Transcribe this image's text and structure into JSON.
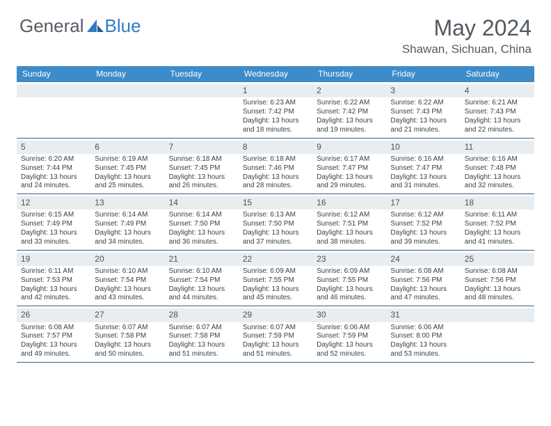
{
  "brand": {
    "part1": "General",
    "part2": "Blue"
  },
  "title": "May 2024",
  "location": "Shawan, Sichuan, China",
  "daynames": [
    "Sunday",
    "Monday",
    "Tuesday",
    "Wednesday",
    "Thursday",
    "Friday",
    "Saturday"
  ],
  "colors": {
    "header_bg": "#3c8ccb",
    "daynum_bg": "#e9edf0",
    "rule": "#2e5e88",
    "text": "#3a3f44",
    "title": "#52595f"
  },
  "weeks": [
    [
      null,
      null,
      null,
      {
        "n": "1",
        "sr": "6:23 AM",
        "ss": "7:42 PM",
        "dl1": "13 hours",
        "dl2": "and 18 minutes."
      },
      {
        "n": "2",
        "sr": "6:22 AM",
        "ss": "7:42 PM",
        "dl1": "13 hours",
        "dl2": "and 19 minutes."
      },
      {
        "n": "3",
        "sr": "6:22 AM",
        "ss": "7:43 PM",
        "dl1": "13 hours",
        "dl2": "and 21 minutes."
      },
      {
        "n": "4",
        "sr": "6:21 AM",
        "ss": "7:43 PM",
        "dl1": "13 hours",
        "dl2": "and 22 minutes."
      }
    ],
    [
      {
        "n": "5",
        "sr": "6:20 AM",
        "ss": "7:44 PM",
        "dl1": "13 hours",
        "dl2": "and 24 minutes."
      },
      {
        "n": "6",
        "sr": "6:19 AM",
        "ss": "7:45 PM",
        "dl1": "13 hours",
        "dl2": "and 25 minutes."
      },
      {
        "n": "7",
        "sr": "6:18 AM",
        "ss": "7:45 PM",
        "dl1": "13 hours",
        "dl2": "and 26 minutes."
      },
      {
        "n": "8",
        "sr": "6:18 AM",
        "ss": "7:46 PM",
        "dl1": "13 hours",
        "dl2": "and 28 minutes."
      },
      {
        "n": "9",
        "sr": "6:17 AM",
        "ss": "7:47 PM",
        "dl1": "13 hours",
        "dl2": "and 29 minutes."
      },
      {
        "n": "10",
        "sr": "6:16 AM",
        "ss": "7:47 PM",
        "dl1": "13 hours",
        "dl2": "and 31 minutes."
      },
      {
        "n": "11",
        "sr": "6:16 AM",
        "ss": "7:48 PM",
        "dl1": "13 hours",
        "dl2": "and 32 minutes."
      }
    ],
    [
      {
        "n": "12",
        "sr": "6:15 AM",
        "ss": "7:49 PM",
        "dl1": "13 hours",
        "dl2": "and 33 minutes."
      },
      {
        "n": "13",
        "sr": "6:14 AM",
        "ss": "7:49 PM",
        "dl1": "13 hours",
        "dl2": "and 34 minutes."
      },
      {
        "n": "14",
        "sr": "6:14 AM",
        "ss": "7:50 PM",
        "dl1": "13 hours",
        "dl2": "and 36 minutes."
      },
      {
        "n": "15",
        "sr": "6:13 AM",
        "ss": "7:50 PM",
        "dl1": "13 hours",
        "dl2": "and 37 minutes."
      },
      {
        "n": "16",
        "sr": "6:12 AM",
        "ss": "7:51 PM",
        "dl1": "13 hours",
        "dl2": "and 38 minutes."
      },
      {
        "n": "17",
        "sr": "6:12 AM",
        "ss": "7:52 PM",
        "dl1": "13 hours",
        "dl2": "and 39 minutes."
      },
      {
        "n": "18",
        "sr": "6:11 AM",
        "ss": "7:52 PM",
        "dl1": "13 hours",
        "dl2": "and 41 minutes."
      }
    ],
    [
      {
        "n": "19",
        "sr": "6:11 AM",
        "ss": "7:53 PM",
        "dl1": "13 hours",
        "dl2": "and 42 minutes."
      },
      {
        "n": "20",
        "sr": "6:10 AM",
        "ss": "7:54 PM",
        "dl1": "13 hours",
        "dl2": "and 43 minutes."
      },
      {
        "n": "21",
        "sr": "6:10 AM",
        "ss": "7:54 PM",
        "dl1": "13 hours",
        "dl2": "and 44 minutes."
      },
      {
        "n": "22",
        "sr": "6:09 AM",
        "ss": "7:55 PM",
        "dl1": "13 hours",
        "dl2": "and 45 minutes."
      },
      {
        "n": "23",
        "sr": "6:09 AM",
        "ss": "7:55 PM",
        "dl1": "13 hours",
        "dl2": "and 46 minutes."
      },
      {
        "n": "24",
        "sr": "6:08 AM",
        "ss": "7:56 PM",
        "dl1": "13 hours",
        "dl2": "and 47 minutes."
      },
      {
        "n": "25",
        "sr": "6:08 AM",
        "ss": "7:56 PM",
        "dl1": "13 hours",
        "dl2": "and 48 minutes."
      }
    ],
    [
      {
        "n": "26",
        "sr": "6:08 AM",
        "ss": "7:57 PM",
        "dl1": "13 hours",
        "dl2": "and 49 minutes."
      },
      {
        "n": "27",
        "sr": "6:07 AM",
        "ss": "7:58 PM",
        "dl1": "13 hours",
        "dl2": "and 50 minutes."
      },
      {
        "n": "28",
        "sr": "6:07 AM",
        "ss": "7:58 PM",
        "dl1": "13 hours",
        "dl2": "and 51 minutes."
      },
      {
        "n": "29",
        "sr": "6:07 AM",
        "ss": "7:59 PM",
        "dl1": "13 hours",
        "dl2": "and 51 minutes."
      },
      {
        "n": "30",
        "sr": "6:06 AM",
        "ss": "7:59 PM",
        "dl1": "13 hours",
        "dl2": "and 52 minutes."
      },
      {
        "n": "31",
        "sr": "6:06 AM",
        "ss": "8:00 PM",
        "dl1": "13 hours",
        "dl2": "and 53 minutes."
      },
      null
    ]
  ]
}
